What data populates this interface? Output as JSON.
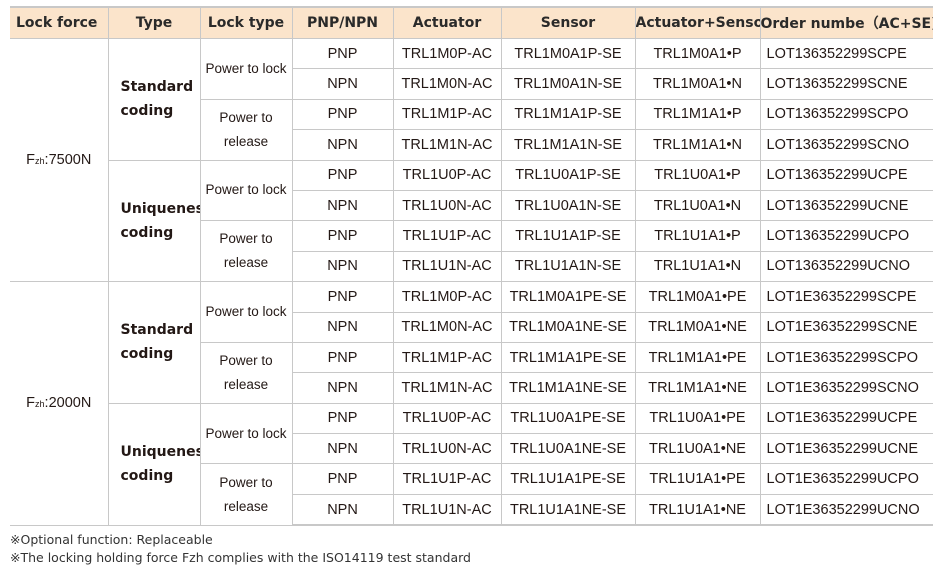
{
  "header": [
    "Lock force",
    "Type",
    "Lock type",
    "PNP/NPN",
    "Actuator",
    "Sensor",
    "Actuator+Sensor",
    "Order numbe（AC+SE)"
  ],
  "colors": {
    "header_bg": "#fbe4cb",
    "border": "#c8c8c8",
    "text": "#231815"
  },
  "groups": [
    {
      "force_prefix": "F",
      "force_sub": "zh",
      "force_value": ":7500N",
      "types": [
        {
          "type": "Standard coding",
          "locks": [
            {
              "lock": "Power to lock",
              "rows": [
                {
                  "pnp": "PNP",
                  "actuator": "TRL1M0P-AC",
                  "sensor": "TRL1M0A1P-SE",
                  "combo": "TRL1M0A1•P",
                  "order": "LOT136352299SCPE"
                },
                {
                  "pnp": "NPN",
                  "actuator": "TRL1M0N-AC",
                  "sensor": "TRL1M0A1N-SE",
                  "combo": "TRL1M0A1•N",
                  "order": "LOT136352299SCNE"
                }
              ]
            },
            {
              "lock": "Power to release",
              "rows": [
                {
                  "pnp": "PNP",
                  "actuator": "TRL1M1P-AC",
                  "sensor": "TRL1M1A1P-SE",
                  "combo": "TRL1M1A1•P",
                  "order": "LOT136352299SCPO"
                },
                {
                  "pnp": "NPN",
                  "actuator": "TRL1M1N-AC",
                  "sensor": "TRL1M1A1N-SE",
                  "combo": "TRL1M1A1•N",
                  "order": "LOT136352299SCNO"
                }
              ]
            }
          ]
        },
        {
          "type": "Uniqueness coding",
          "locks": [
            {
              "lock": "Power to lock",
              "rows": [
                {
                  "pnp": "PNP",
                  "actuator": "TRL1U0P-AC",
                  "sensor": "TRL1U0A1P-SE",
                  "combo": "TRL1U0A1•P",
                  "order": "LOT136352299UCPE"
                },
                {
                  "pnp": "NPN",
                  "actuator": "TRL1U0N-AC",
                  "sensor": "TRL1U0A1N-SE",
                  "combo": "TRL1U0A1•N",
                  "order": "LOT136352299UCNE"
                }
              ]
            },
            {
              "lock": "Power to release",
              "rows": [
                {
                  "pnp": "PNP",
                  "actuator": "TRL1U1P-AC",
                  "sensor": "TRL1U1A1P-SE",
                  "combo": "TRL1U1A1•P",
                  "order": "LOT136352299UCPO"
                },
                {
                  "pnp": "NPN",
                  "actuator": "TRL1U1N-AC",
                  "sensor": "TRL1U1A1N-SE",
                  "combo": "TRL1U1A1•N",
                  "order": "LOT136352299UCNO"
                }
              ]
            }
          ]
        }
      ]
    },
    {
      "force_prefix": "F",
      "force_sub": "zh",
      "force_value": ":2000N",
      "types": [
        {
          "type": "Standard coding",
          "locks": [
            {
              "lock": "Power to lock",
              "rows": [
                {
                  "pnp": "PNP",
                  "actuator": "TRL1M0P-AC",
                  "sensor": "TRL1M0A1PE-SE",
                  "combo": "TRL1M0A1•PE",
                  "order": "LOT1E36352299SCPE"
                },
                {
                  "pnp": "NPN",
                  "actuator": "TRL1M0N-AC",
                  "sensor": "TRL1M0A1NE-SE",
                  "combo": "TRL1M0A1•NE",
                  "order": "LOT1E36352299SCNE"
                }
              ]
            },
            {
              "lock": "Power to release",
              "rows": [
                {
                  "pnp": "PNP",
                  "actuator": "TRL1M1P-AC",
                  "sensor": "TRL1M1A1PE-SE",
                  "combo": "TRL1M1A1•PE",
                  "order": "LOT1E36352299SCPO"
                },
                {
                  "pnp": "NPN",
                  "actuator": "TRL1M1N-AC",
                  "sensor": "TRL1M1A1NE-SE",
                  "combo": "TRL1M1A1•NE",
                  "order": "LOT1E36352299SCNO"
                }
              ]
            }
          ]
        },
        {
          "type": "Uniqueness coding",
          "locks": [
            {
              "lock": "Power to lock",
              "rows": [
                {
                  "pnp": "PNP",
                  "actuator": "TRL1U0P-AC",
                  "sensor": "TRL1U0A1PE-SE",
                  "combo": "TRL1U0A1•PE",
                  "order": "LOT1E36352299UCPE"
                },
                {
                  "pnp": "NPN",
                  "actuator": "TRL1U0N-AC",
                  "sensor": "TRL1U0A1NE-SE",
                  "combo": "TRL1U0A1•NE",
                  "order": "LOT1E36352299UCNE"
                }
              ]
            },
            {
              "lock": "Power to release",
              "rows": [
                {
                  "pnp": "PNP",
                  "actuator": "TRL1U1P-AC",
                  "sensor": "TRL1U1A1PE-SE",
                  "combo": "TRL1U1A1•PE",
                  "order": "LOT1E36352299UCPO"
                },
                {
                  "pnp": "NPN",
                  "actuator": "TRL1U1N-AC",
                  "sensor": "TRL1U1A1NE-SE",
                  "combo": "TRL1U1A1•NE",
                  "order": "LOT1E36352299UCNO"
                }
              ]
            }
          ]
        }
      ]
    }
  ],
  "notes": [
    "※Optional function: Replaceable",
    "※The locking holding force Fzh complies with the ISO14119 test standard"
  ]
}
